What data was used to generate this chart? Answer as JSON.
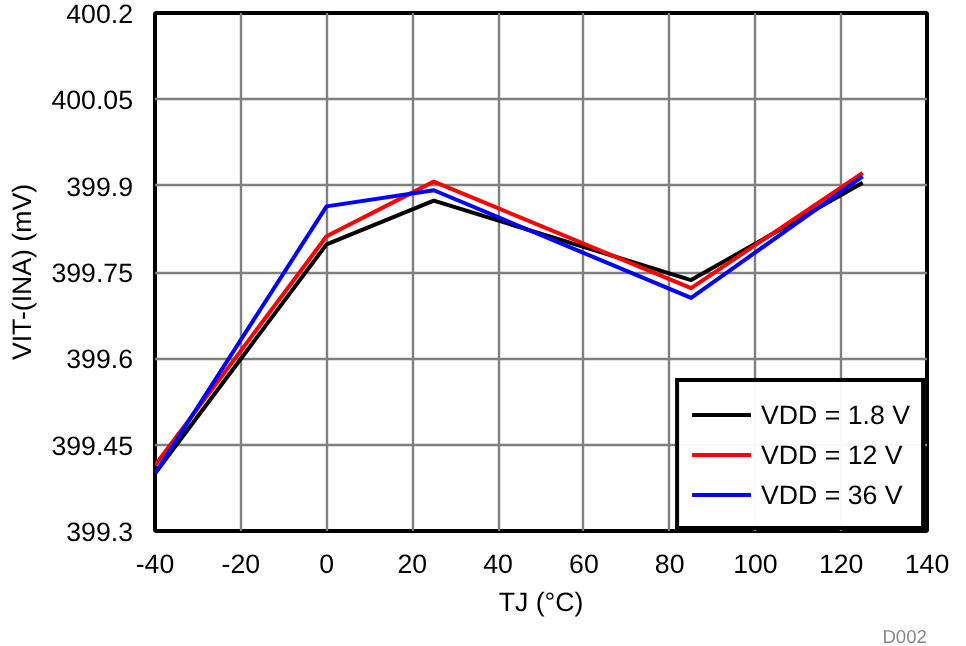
{
  "chart_data": {
    "type": "line",
    "xlabel": "TJ (°C)",
    "ylabel": "VIT-(INA) (mV)",
    "x": [
      -40,
      0,
      25,
      85,
      125
    ],
    "series": [
      {
        "name": "VDD = 1.8 V",
        "color": "#000000",
        "values": [
          399.4,
          399.798,
          399.874,
          399.736,
          399.905
        ]
      },
      {
        "name": "VDD = 12 V",
        "color": "#ff0000",
        "values": [
          399.414,
          399.812,
          399.907,
          399.722,
          399.922
        ]
      },
      {
        "name": "VDD = 36 V",
        "color": "#0000ff",
        "values": [
          399.4,
          399.864,
          399.892,
          399.705,
          399.916
        ]
      }
    ],
    "xlim": [
      -40,
      140
    ],
    "xticks": [
      -40,
      -20,
      0,
      20,
      40,
      60,
      80,
      100,
      120,
      140
    ],
    "ylim": [
      399.3,
      400.2
    ],
    "yticks": [
      399.3,
      399.45,
      399.6,
      399.75,
      399.9,
      400.05,
      400.2
    ],
    "grid": true,
    "legend": "bottom right",
    "marker": "none",
    "line_style": "solid",
    "annotations": [
      "D002"
    ]
  }
}
